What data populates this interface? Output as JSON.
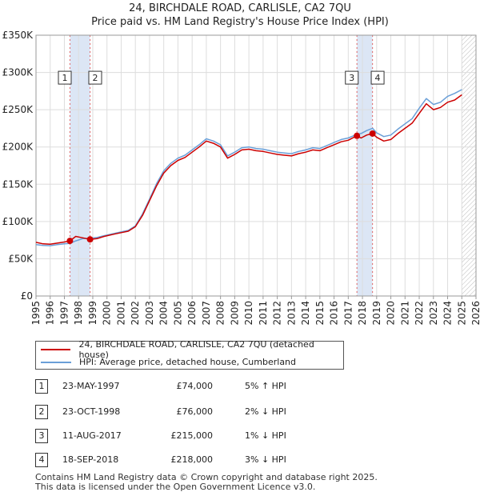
{
  "chart_data": {
    "type": "line",
    "title": "24, BIRCHDALE ROAD, CARLISLE, CA2 7QU",
    "subtitle": "Price paid vs. HM Land Registry's House Price Index (HPI)",
    "xlabel": "",
    "ylabel": "",
    "xlim": [
      1995,
      2026
    ],
    "ylim": [
      0,
      350000
    ],
    "y_ticks": [
      {
        "value": 0,
        "label": "£0"
      },
      {
        "value": 50000,
        "label": "£50K"
      },
      {
        "value": 100000,
        "label": "£100K"
      },
      {
        "value": 150000,
        "label": "£150K"
      },
      {
        "value": 200000,
        "label": "£200K"
      },
      {
        "value": 250000,
        "label": "£250K"
      },
      {
        "value": 300000,
        "label": "£300K"
      },
      {
        "value": 350000,
        "label": "£350K"
      }
    ],
    "x_ticks": [
      "1995",
      "1996",
      "1997",
      "1998",
      "1999",
      "2000",
      "2001",
      "2002",
      "2003",
      "2004",
      "2005",
      "2006",
      "2007",
      "2008",
      "2009",
      "2010",
      "2011",
      "2012",
      "2013",
      "2014",
      "2015",
      "2016",
      "2017",
      "2018",
      "2019",
      "2020",
      "2021",
      "2022",
      "2023",
      "2024",
      "2025",
      "2026"
    ],
    "grid": true,
    "projection_start": 2025.0,
    "colors": {
      "property": "#cc0000",
      "hpi": "#6a9fd8",
      "band": "#dce6f5",
      "vline": "#e06060",
      "grid": "#dddddd"
    },
    "series": [
      {
        "name": "24, BIRCHDALE ROAD, CARLISLE, CA2 7QU (detached house)",
        "x": [
          1995.0,
          1995.5,
          1996.0,
          1996.5,
          1997.0,
          1997.39,
          1997.8,
          1998.3,
          1998.81,
          1999.3,
          1999.8,
          2000.5,
          2001.0,
          2001.5,
          2002.0,
          2002.5,
          2003.0,
          2003.5,
          2004.0,
          2004.5,
          2005.0,
          2005.5,
          2006.0,
          2006.5,
          2007.0,
          2007.5,
          2008.0,
          2008.5,
          2009.0,
          2009.5,
          2010.0,
          2010.5,
          2011.0,
          2011.5,
          2012.0,
          2012.5,
          2013.0,
          2013.5,
          2014.0,
          2014.5,
          2015.0,
          2015.5,
          2016.0,
          2016.5,
          2017.0,
          2017.61,
          2017.9,
          2018.3,
          2018.71,
          2019.0,
          2019.5,
          2020.0,
          2020.5,
          2021.0,
          2021.5,
          2022.0,
          2022.5,
          2023.0,
          2023.5,
          2024.0,
          2024.5,
          2025.0
        ],
        "y": [
          72000,
          70000,
          69500,
          71000,
          72500,
          74000,
          80000,
          78000,
          76000,
          77000,
          80000,
          83000,
          85000,
          87000,
          93000,
          108000,
          128000,
          148000,
          165000,
          175000,
          182000,
          186000,
          193000,
          200000,
          208000,
          205000,
          200000,
          185000,
          190000,
          196000,
          197000,
          195000,
          194000,
          192000,
          190000,
          189000,
          188000,
          191000,
          193000,
          196000,
          195000,
          199000,
          203000,
          207000,
          209000,
          215000,
          212000,
          216000,
          218000,
          213000,
          208000,
          210000,
          218000,
          225000,
          232000,
          245000,
          258000,
          250000,
          253000,
          260000,
          263000,
          270000
        ]
      },
      {
        "name": "HPI: Average price, detached house, Cumberland",
        "x": [
          1995.0,
          1995.5,
          1996.0,
          1996.5,
          1997.0,
          1997.39,
          1997.8,
          1998.3,
          1998.81,
          1999.3,
          1999.8,
          2000.5,
          2001.0,
          2001.5,
          2002.0,
          2002.5,
          2003.0,
          2003.5,
          2004.0,
          2004.5,
          2005.0,
          2005.5,
          2006.0,
          2006.5,
          2007.0,
          2007.5,
          2008.0,
          2008.5,
          2009.0,
          2009.5,
          2010.0,
          2010.5,
          2011.0,
          2011.5,
          2012.0,
          2012.5,
          2013.0,
          2013.5,
          2014.0,
          2014.5,
          2015.0,
          2015.5,
          2016.0,
          2016.5,
          2017.0,
          2017.61,
          2017.9,
          2018.3,
          2018.71,
          2019.0,
          2019.5,
          2020.0,
          2020.5,
          2021.0,
          2021.5,
          2022.0,
          2022.5,
          2023.0,
          2023.5,
          2024.0,
          2024.5,
          2025.0
        ],
        "y": [
          69000,
          68000,
          67500,
          69000,
          70000,
          70500,
          74000,
          77000,
          77500,
          78500,
          81000,
          84000,
          86000,
          88000,
          94000,
          110000,
          130000,
          151000,
          168000,
          178000,
          185000,
          189000,
          196000,
          203000,
          211000,
          208000,
          203000,
          188000,
          193000,
          199000,
          200000,
          198000,
          197000,
          195000,
          193000,
          192000,
          191000,
          194000,
          196000,
          199000,
          198000,
          202000,
          206000,
          210000,
          212000,
          217000,
          218000,
          222000,
          225000,
          219000,
          214000,
          216000,
          224000,
          231000,
          238000,
          252000,
          265000,
          257000,
          260000,
          268000,
          272000,
          277000
        ]
      }
    ],
    "sales": [
      {
        "id": "1",
        "x": 1997.39,
        "y": 74000
      },
      {
        "id": "2",
        "x": 1998.81,
        "y": 76000
      },
      {
        "id": "3",
        "x": 2017.61,
        "y": 215000
      },
      {
        "id": "4",
        "x": 2018.71,
        "y": 218000
      }
    ],
    "band_ranges": [
      [
        1997.39,
        1998.81
      ],
      [
        2017.61,
        2018.71
      ]
    ],
    "box_value_y": 293000
  },
  "legend": {
    "property": "24, BIRCHDALE ROAD, CARLISLE, CA2 7QU (detached house)",
    "hpi": "HPI: Average price, detached house, Cumberland"
  },
  "sales_table": [
    {
      "num": "1",
      "date": "23-MAY-1997",
      "price": "£74,000",
      "hpi": "5% ↑ HPI"
    },
    {
      "num": "2",
      "date": "23-OCT-1998",
      "price": "£76,000",
      "hpi": "2% ↓ HPI"
    },
    {
      "num": "3",
      "date": "11-AUG-2017",
      "price": "£215,000",
      "hpi": "1% ↓ HPI"
    },
    {
      "num": "4",
      "date": "18-SEP-2018",
      "price": "£218,000",
      "hpi": "3% ↓ HPI"
    }
  ],
  "footer": {
    "line1": "Contains HM Land Registry data © Crown copyright and database right 2025.",
    "line2": "This data is licensed under the Open Government Licence v3.0."
  }
}
